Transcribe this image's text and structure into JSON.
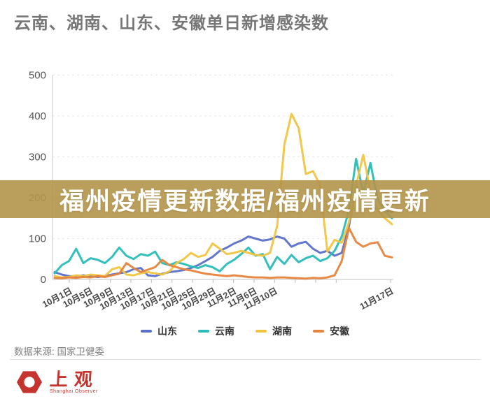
{
  "title": "云南、湖南、山东、安徽单日新增感染数",
  "overlay_banner": {
    "text": "福州疫情更新数据/福州疫情更新",
    "bg_color": "#b29349",
    "text_color": "#ffffff"
  },
  "chart_data": {
    "type": "line",
    "title": "云南、湖南、山东、安徽单日新增感染数",
    "xlabel": "",
    "ylabel": "",
    "ylim": [
      0,
      500
    ],
    "yticks": [
      0,
      100,
      200,
      300,
      400,
      500
    ],
    "grid": "horizontal-dashed",
    "legend_position": "bottom",
    "x_tick_labels": [
      "10月1日",
      "10月5日",
      "10月9日",
      "10月13日",
      "10月17日",
      "10月21日",
      "10月25日",
      "10月29日",
      "11月2日",
      "11月6日",
      "11月10日",
      "11月17日"
    ],
    "x_range_note": "daily points from 10月1日 to 11月17日",
    "series": [
      {
        "name": "山东",
        "color": "#5a6fc8",
        "values": [
          18,
          12,
          8,
          6,
          10,
          8,
          6,
          8,
          12,
          15,
          18,
          25,
          28,
          10,
          8,
          14,
          18,
          20,
          23,
          28,
          35,
          45,
          55,
          70,
          78,
          88,
          95,
          105,
          100,
          95,
          98,
          105,
          100,
          80,
          88,
          92,
          75,
          65,
          70,
          58,
          65,
          130,
          230,
          190,
          178,
          172,
          168,
          165
        ]
      },
      {
        "name": "云南",
        "color": "#28bdb8",
        "values": [
          15,
          35,
          45,
          75,
          40,
          52,
          48,
          40,
          55,
          78,
          58,
          50,
          62,
          58,
          68,
          40,
          35,
          42,
          38,
          32,
          28,
          35,
          30,
          20,
          38,
          48,
          62,
          78,
          58,
          62,
          25,
          55,
          38,
          60,
          42,
          52,
          58,
          45,
          52,
          70,
          105,
          170,
          295,
          210,
          285,
          195,
          168,
          150
        ]
      },
      {
        "name": "湖南",
        "color": "#f1c440",
        "values": [
          8,
          5,
          6,
          10,
          8,
          12,
          10,
          8,
          25,
          30,
          12,
          10,
          15,
          18,
          15,
          12,
          20,
          40,
          50,
          65,
          55,
          60,
          88,
          75,
          62,
          65,
          70,
          65,
          60,
          58,
          65,
          130,
          330,
          405,
          370,
          258,
          265,
          230,
          68,
          97,
          90,
          140,
          230,
          305,
          215,
          170,
          150,
          135
        ]
      },
      {
        "name": "安徽",
        "color": "#e7843b",
        "values": [
          4,
          3,
          5,
          4,
          6,
          5,
          8,
          6,
          10,
          14,
          40,
          28,
          18,
          24,
          30,
          48,
          35,
          30,
          25,
          22,
          18,
          14,
          12,
          10,
          8,
          10,
          8,
          6,
          5,
          5,
          4,
          5,
          5,
          4,
          3,
          2,
          4,
          3,
          5,
          10,
          45,
          126,
          92,
          80,
          88,
          91,
          58,
          54
        ]
      }
    ]
  },
  "source": {
    "label": "数据来源: 国家卫健委"
  },
  "logo": {
    "cn": "上观",
    "en": "Shanghai Observer",
    "color": "#c5342f"
  }
}
